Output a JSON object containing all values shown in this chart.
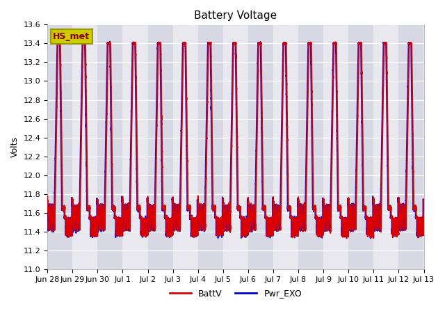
{
  "title": "Battery Voltage",
  "ylabel": "Volts",
  "ylim": [
    11.0,
    13.6
  ],
  "yticks": [
    11.0,
    11.2,
    11.4,
    11.6,
    11.8,
    12.0,
    12.2,
    12.4,
    12.6,
    12.8,
    13.0,
    13.2,
    13.4,
    13.6
  ],
  "legend_labels": [
    "BattV",
    "Pwr_EXO"
  ],
  "legend_colors": [
    "#dd0000",
    "#0000cc"
  ],
  "annotation_text": "HS_met",
  "annotation_bg": "#cccc00",
  "annotation_border": "#999900",
  "bg_color_light": "#e8e8ee",
  "bg_color_dark": "#d8d8e4",
  "grid_color": "#ffffff",
  "line_color_red": "#dd0000",
  "line_color_blue": "#0000cc",
  "title_fontsize": 11,
  "axis_fontsize": 9,
  "tick_fontsize": 8,
  "legend_fontsize": 9,
  "x_labels": [
    "Jun 28",
    "Jun 29",
    "Jun 30",
    "Jul 1",
    "Jul 2",
    "Jul 3",
    "Jul 4",
    "Jul 5",
    "Jul 6",
    "Jul 7",
    "Jul 8",
    "Jul 9",
    "Jul 10",
    "Jul 11",
    "Jul 12",
    "Jul 13"
  ]
}
